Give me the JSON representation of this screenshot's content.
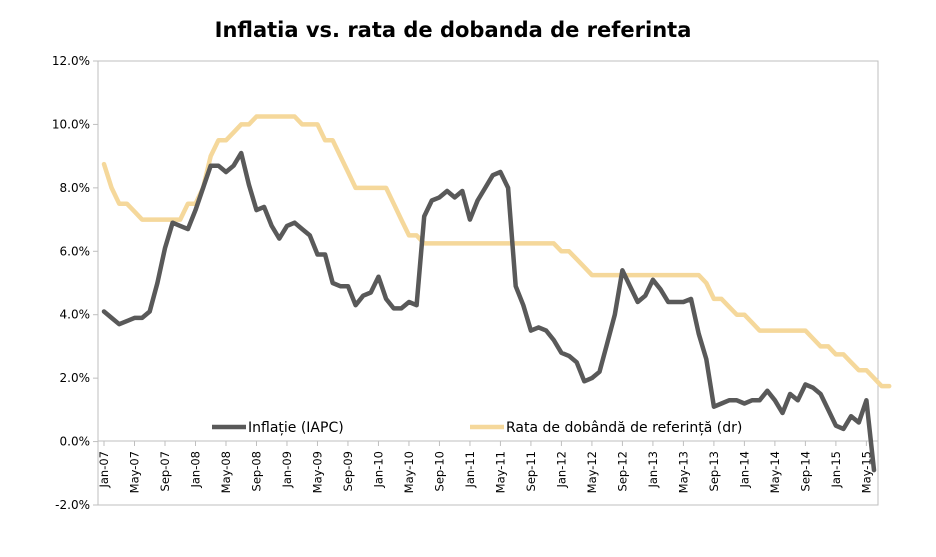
{
  "chart_data": {
    "type": "line",
    "title": "Inflatia vs. rata de dobanda de referinta",
    "xlabel": "",
    "ylabel": "",
    "ylim": [
      -0.02,
      0.12
    ],
    "y_ticks": [
      "-2.0%",
      "0.0%",
      "2.0%",
      "4.0%",
      "6.0%",
      "8.0%",
      "10.0%",
      "12.0%"
    ],
    "y_tick_values": [
      -0.02,
      0.0,
      0.02,
      0.04,
      0.06,
      0.08,
      0.1,
      0.12
    ],
    "x_tick_labels": [
      "Jan-07",
      "May-07",
      "Sep-07",
      "Jan-08",
      "May-08",
      "Sep-08",
      "Jan-09",
      "May-09",
      "Sep-09",
      "Jan-10",
      "May-10",
      "Sep-10",
      "Jan-11",
      "May-11",
      "Sep-11",
      "Jan-12",
      "May-12",
      "Sep-12",
      "Jan-13",
      "May-13",
      "Sep-13",
      "Jan-14",
      "May-14",
      "Sep-14",
      "Jan-15",
      "May-15"
    ],
    "x_tick_month_index": [
      0,
      4,
      8,
      12,
      16,
      20,
      24,
      28,
      32,
      36,
      40,
      44,
      48,
      52,
      56,
      60,
      64,
      68,
      72,
      76,
      80,
      84,
      88,
      92,
      96,
      100
    ],
    "x_start": "Jan-07",
    "x_end": "Jun-15",
    "grid": false,
    "legend_position": "bottom",
    "series": [
      {
        "name": "Inflație (IAPC)",
        "color": "#595959",
        "values": [
          0.041,
          0.039,
          0.037,
          0.038,
          0.039,
          0.039,
          0.041,
          0.05,
          0.061,
          0.069,
          0.068,
          0.067,
          0.073,
          0.08,
          0.087,
          0.087,
          0.085,
          0.087,
          0.091,
          0.081,
          0.073,
          0.074,
          0.068,
          0.064,
          0.068,
          0.069,
          0.067,
          0.065,
          0.059,
          0.059,
          0.05,
          0.049,
          0.049,
          0.043,
          0.046,
          0.047,
          0.052,
          0.045,
          0.042,
          0.042,
          0.044,
          0.043,
          0.071,
          0.076,
          0.077,
          0.079,
          0.077,
          0.079,
          0.07,
          0.076,
          0.08,
          0.084,
          0.085,
          0.08,
          0.049,
          0.043,
          0.035,
          0.036,
          0.035,
          0.032,
          0.028,
          0.027,
          0.025,
          0.019,
          0.02,
          0.022,
          0.031,
          0.04,
          0.054,
          0.049,
          0.044,
          0.046,
          0.051,
          0.048,
          0.044,
          0.044,
          0.044,
          0.045,
          0.034,
          0.026,
          0.011,
          0.012,
          0.013,
          0.013,
          0.012,
          0.013,
          0.013,
          0.016,
          0.013,
          0.009,
          0.015,
          0.013,
          0.018,
          0.017,
          0.015,
          0.01,
          0.005,
          0.004,
          0.008,
          0.006,
          0.013,
          -0.009
        ]
      },
      {
        "name": "Rata de dobândă de referință (dr)",
        "color": "#F5D89B",
        "values": [
          0.0875,
          0.08,
          0.075,
          0.075,
          0.0725,
          0.07,
          0.07,
          0.07,
          0.07,
          0.07,
          0.07,
          0.075,
          0.075,
          0.08,
          0.09,
          0.095,
          0.095,
          0.0975,
          0.1,
          0.1,
          0.1025,
          0.1025,
          0.1025,
          0.1025,
          0.1025,
          0.1025,
          0.1,
          0.1,
          0.1,
          0.095,
          0.095,
          0.09,
          0.085,
          0.08,
          0.08,
          0.08,
          0.08,
          0.08,
          0.075,
          0.07,
          0.065,
          0.065,
          0.0625,
          0.0625,
          0.0625,
          0.0625,
          0.0625,
          0.0625,
          0.0625,
          0.0625,
          0.0625,
          0.0625,
          0.0625,
          0.0625,
          0.0625,
          0.0625,
          0.0625,
          0.0625,
          0.0625,
          0.0625,
          0.06,
          0.06,
          0.0575,
          0.055,
          0.0525,
          0.0525,
          0.0525,
          0.0525,
          0.0525,
          0.0525,
          0.0525,
          0.0525,
          0.0525,
          0.0525,
          0.0525,
          0.0525,
          0.0525,
          0.0525,
          0.0525,
          0.05,
          0.045,
          0.045,
          0.0425,
          0.04,
          0.04,
          0.0375,
          0.035,
          0.035,
          0.035,
          0.035,
          0.035,
          0.035,
          0.035,
          0.0325,
          0.03,
          0.03,
          0.0275,
          0.0275,
          0.025,
          0.0225,
          0.0225,
          0.02,
          0.0175,
          0.0175
        ]
      }
    ]
  }
}
